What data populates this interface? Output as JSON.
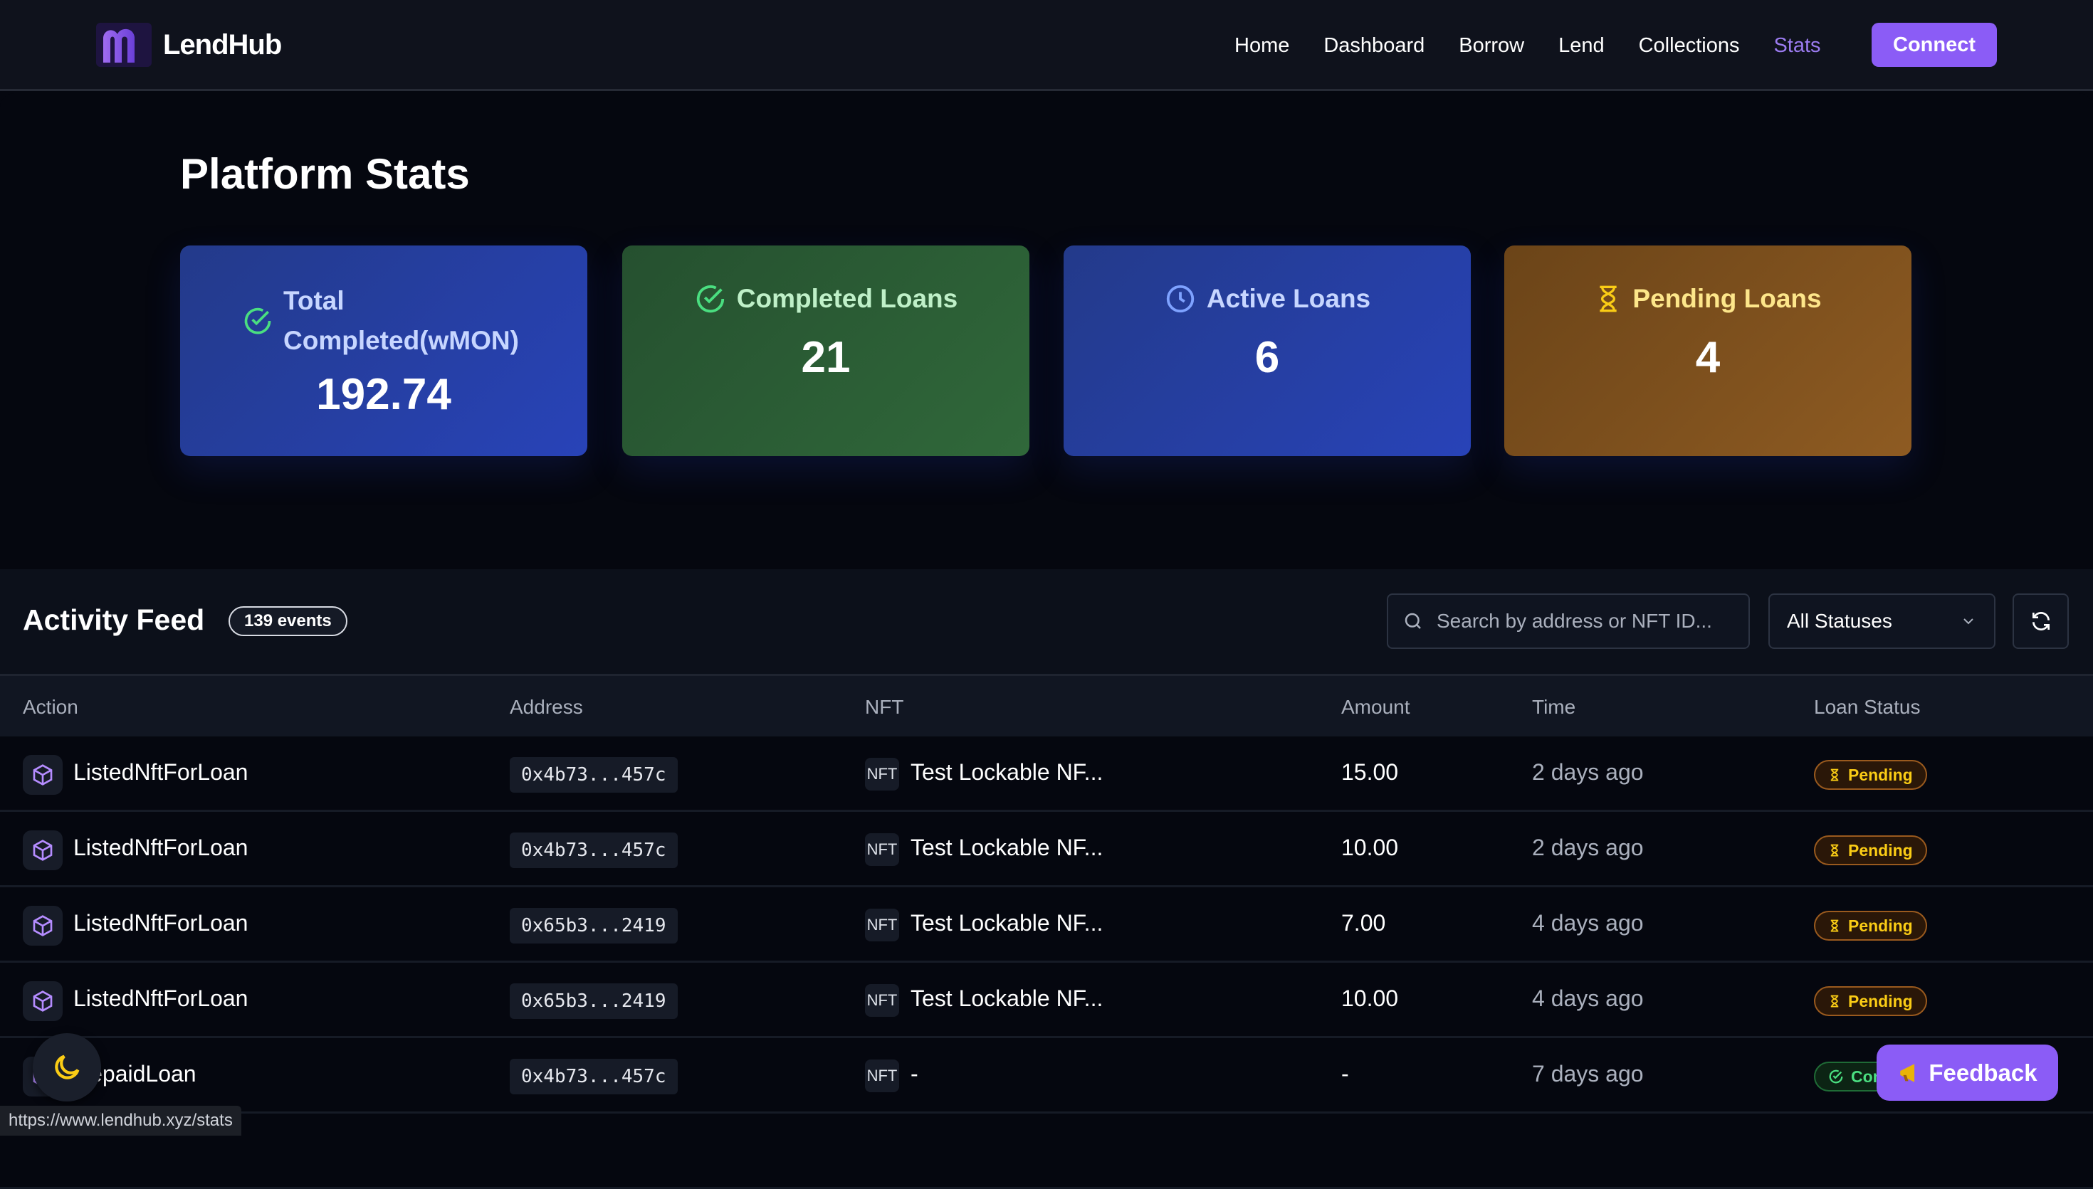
{
  "brand": {
    "name": "LendHub",
    "accent": "#8b5cf6"
  },
  "nav": {
    "items": [
      {
        "label": "Home"
      },
      {
        "label": "Dashboard"
      },
      {
        "label": "Borrow"
      },
      {
        "label": "Lend"
      },
      {
        "label": "Collections"
      },
      {
        "label": "Stats",
        "active": true
      }
    ],
    "connect_label": "Connect"
  },
  "page": {
    "title": "Platform Stats"
  },
  "stats": [
    {
      "label": "Total Completed(wMON)",
      "value": "192.74",
      "icon": "check-circle-icon"
    },
    {
      "label": "Completed Loans",
      "value": "21",
      "icon": "check-circle-icon"
    },
    {
      "label": "Active Loans",
      "value": "6",
      "icon": "clock-icon"
    },
    {
      "label": "Pending Loans",
      "value": "4",
      "icon": "hourglass-icon"
    }
  ],
  "activity": {
    "title": "Activity Feed",
    "count_label": "139 events",
    "search_placeholder": "Search by address or NFT ID...",
    "status_filter": "All Statuses",
    "columns": [
      "Action",
      "Address",
      "NFT",
      "Amount",
      "Time",
      "Loan Status"
    ],
    "rows": [
      {
        "action": "ListedNftForLoan",
        "address": "0x4b73...457c",
        "nft_tag": "NFT",
        "nft": "Test Lockable NF...",
        "amount": "15.00",
        "time": "2 days ago",
        "status": "Pending"
      },
      {
        "action": "ListedNftForLoan",
        "address": "0x4b73...457c",
        "nft_tag": "NFT",
        "nft": "Test Lockable NF...",
        "amount": "10.00",
        "time": "2 days ago",
        "status": "Pending"
      },
      {
        "action": "ListedNftForLoan",
        "address": "0x65b3...2419",
        "nft_tag": "NFT",
        "nft": "Test Lockable NF...",
        "amount": "7.00",
        "time": "4 days ago",
        "status": "Pending"
      },
      {
        "action": "ListedNftForLoan",
        "address": "0x65b3...2419",
        "nft_tag": "NFT",
        "nft": "Test Lockable NF...",
        "amount": "10.00",
        "time": "4 days ago",
        "status": "Pending"
      },
      {
        "action": "RepaidLoan",
        "address": "0x4b73...457c",
        "nft_tag": "NFT",
        "nft": "-",
        "amount": "-",
        "time": "7 days ago",
        "status": "Completed"
      }
    ]
  },
  "feedback_label": "Feedback",
  "status_url": "https://www.lendhub.xyz/stats"
}
